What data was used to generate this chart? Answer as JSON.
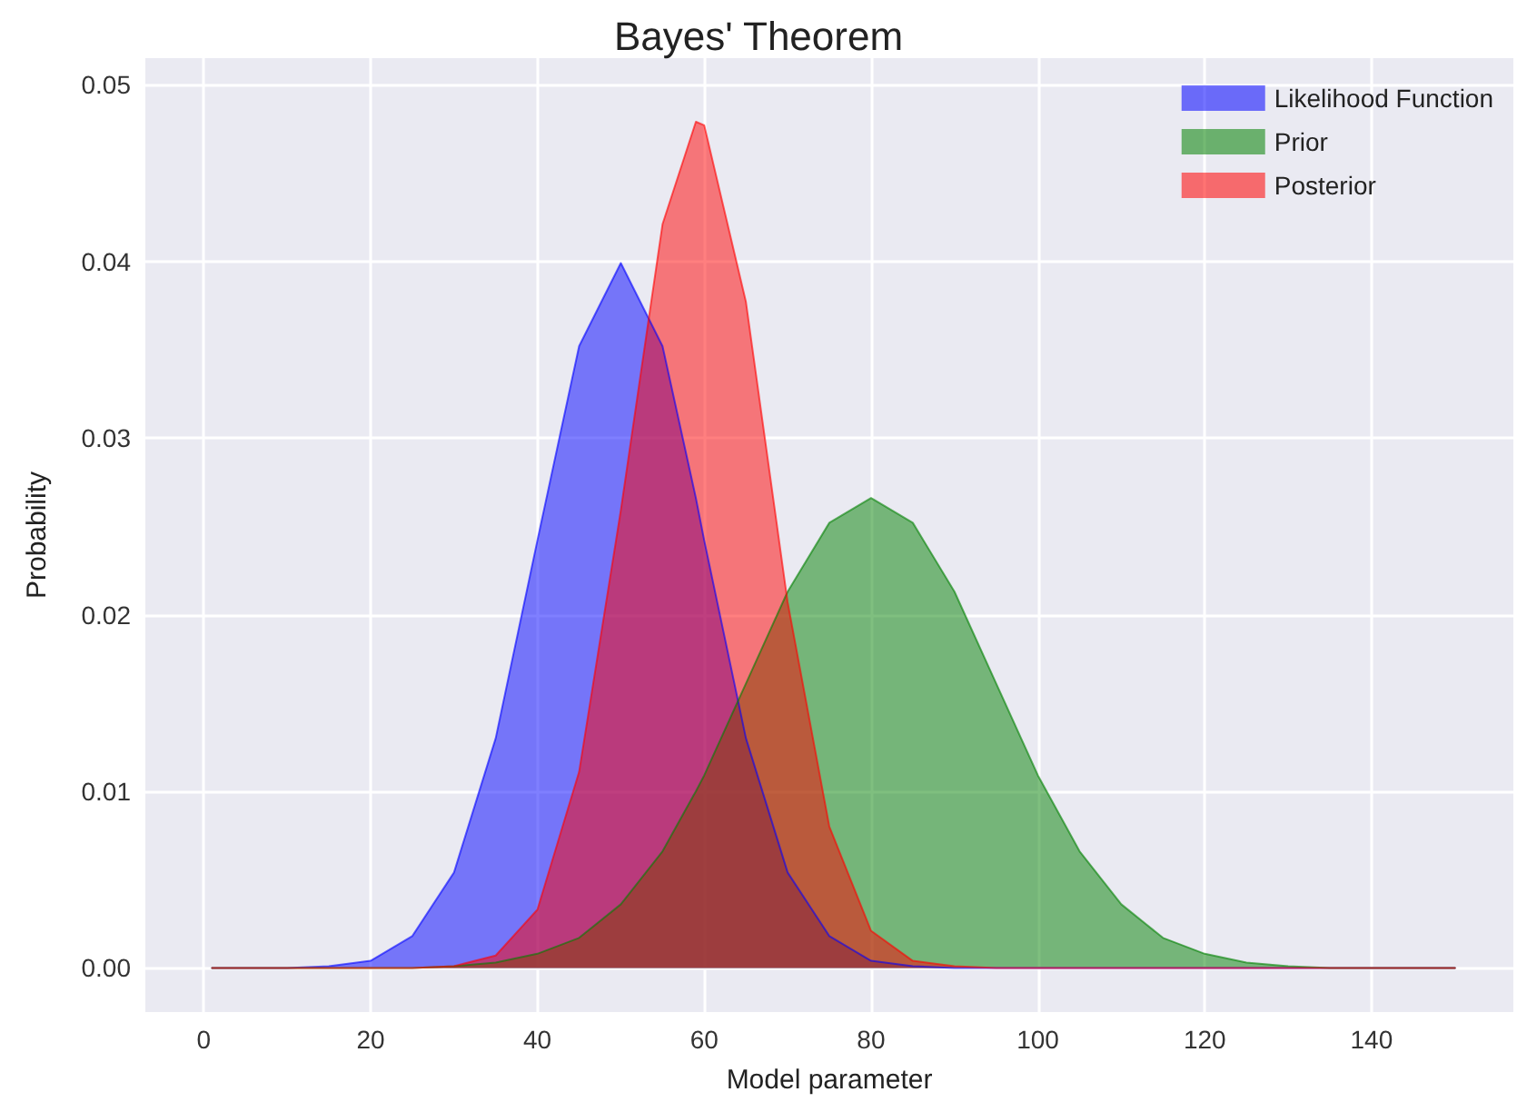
{
  "chart_data": {
    "type": "area",
    "title": "Bayes' Theorem",
    "xlabel": "Model parameter",
    "ylabel": "Probability",
    "x": [
      1,
      5,
      10,
      15,
      20,
      25,
      30,
      35,
      40,
      45,
      50,
      55,
      59,
      60,
      65,
      70,
      75,
      80,
      85,
      90,
      95,
      100,
      105,
      110,
      115,
      120,
      125,
      130,
      135,
      140,
      145,
      150
    ],
    "series": [
      {
        "name": "Likelihood Function",
        "color": "#0000ff",
        "values": [
          0,
          0,
          0,
          0.0001,
          0.0004,
          0.0018,
          0.0054,
          0.013,
          0.0242,
          0.0352,
          0.0399,
          0.0352,
          0.0266,
          0.0242,
          0.013,
          0.0054,
          0.0018,
          0.0004,
          0.0001,
          0,
          0,
          0,
          0,
          0,
          0,
          0,
          0,
          0,
          0,
          0,
          0,
          0
        ]
      },
      {
        "name": "Prior",
        "color": "#008000",
        "values": [
          0,
          0,
          0,
          0,
          0,
          0,
          0.0001,
          0.0003,
          0.0008,
          0.0017,
          0.0036,
          0.0066,
          0.01,
          0.0109,
          0.0161,
          0.0213,
          0.0252,
          0.0266,
          0.0252,
          0.0213,
          0.0161,
          0.0109,
          0.0066,
          0.0036,
          0.0017,
          0.0008,
          0.0003,
          0.0001,
          0,
          0,
          0,
          0
        ]
      },
      {
        "name": "Posterior",
        "color": "#ff0000",
        "values": [
          0,
          0,
          0,
          0,
          0,
          0,
          0.0001,
          0.0007,
          0.0033,
          0.0111,
          0.0259,
          0.0421,
          0.0479,
          0.0477,
          0.0377,
          0.0207,
          0.008,
          0.0021,
          0.0004,
          0.0001,
          0,
          0,
          0,
          0,
          0,
          0,
          0,
          0,
          0,
          0,
          0,
          0
        ]
      }
    ],
    "xlim": [
      -7,
      157
    ],
    "xticks": [
      0,
      20,
      40,
      60,
      80,
      100,
      120,
      140
    ],
    "ylim": [
      -0.0025,
      0.0515
    ],
    "yticks": [
      {
        "value": 0,
        "label": "0.00"
      },
      {
        "value": 0.01,
        "label": "0.01"
      },
      {
        "value": 0.02,
        "label": "0.02"
      },
      {
        "value": 0.03,
        "label": "0.03"
      },
      {
        "value": 0.04,
        "label": "0.04"
      },
      {
        "value": 0.05,
        "label": "0.05"
      }
    ],
    "grid": true,
    "legend": "top right",
    "marker": "none",
    "line_style": "solid"
  }
}
